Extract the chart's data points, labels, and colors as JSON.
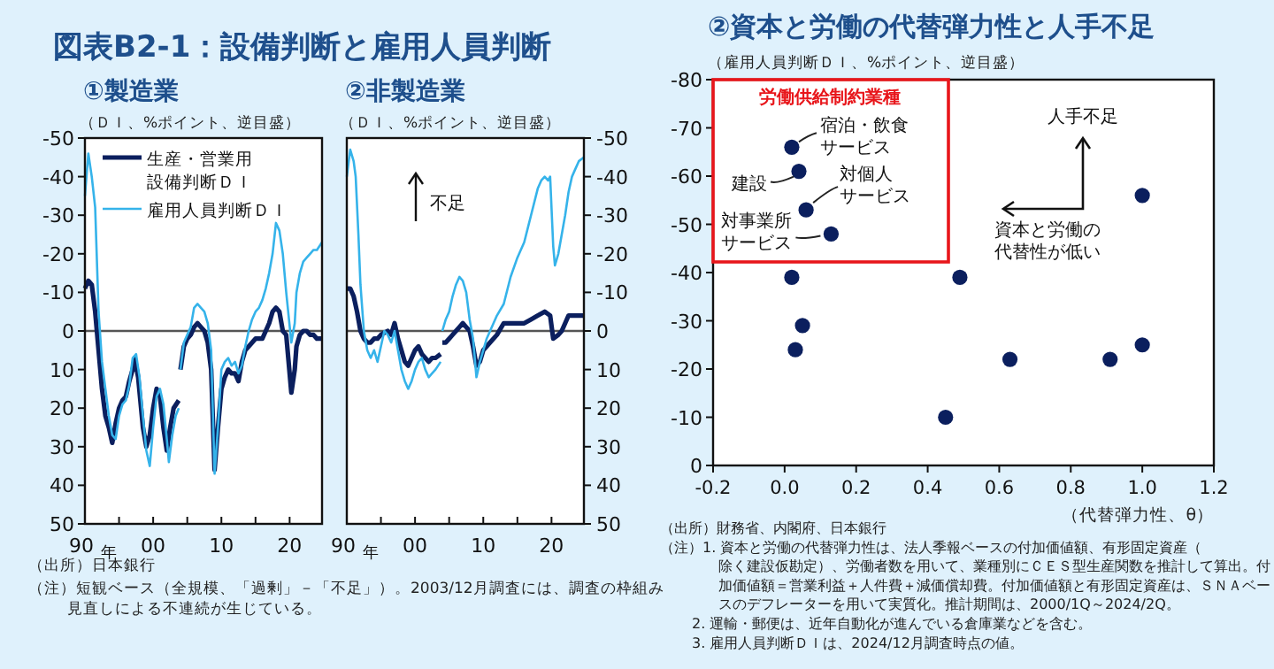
{
  "chart_data": [
    {
      "type": "line",
      "title": "図表B2-1：設備判断と雇用人員判断",
      "subtitle": "①製造業",
      "ylabel": "（ＤＩ、%ポイント、逆目盛）",
      "xlabel": "年",
      "xlim": [
        1990,
        2024.75
      ],
      "ylim": [
        50,
        -50
      ],
      "xticks": [
        {
          "value": 1990,
          "label": "90"
        },
        {
          "value": 1995,
          "label": null
        },
        {
          "value": 2000,
          "label": "00"
        },
        {
          "value": 2005,
          "label": null
        },
        {
          "value": 2010,
          "label": "10"
        },
        {
          "value": 2015,
          "label": null
        },
        {
          "value": 2020,
          "label": "20"
        }
      ],
      "yticks": [
        -50,
        -40,
        -30,
        -20,
        -10,
        0,
        10,
        20,
        30,
        40,
        50
      ],
      "legend": "top left",
      "ref_lines": [
        {
          "axis": "y",
          "value": 0,
          "color": "#555555"
        }
      ],
      "series": [
        {
          "name": "生産・営業用設備判断ＤＩ",
          "color": "#0b1f5e",
          "x": [
            1990,
            1990.5,
            1991,
            1991.5,
            1992,
            1992.5,
            1993,
            1993.5,
            1994,
            1994.5,
            1995,
            1995.5,
            1996,
            1996.5,
            1997,
            1997.3,
            1997.8,
            1998.5,
            1999,
            1999.5,
            2000,
            2000.5,
            2001,
            2001.5,
            2002,
            2002.5,
            2003,
            2003.75,
            2003.9,
            2004,
            2004.5,
            2005,
            2005.5,
            2006,
            2006.5,
            2007,
            2007.5,
            2008,
            2008.5,
            2009,
            2009.5,
            2010,
            2010.5,
            2011,
            2011.5,
            2012,
            2012.5,
            2013,
            2013.5,
            2014,
            2015,
            2016,
            2016.5,
            2017,
            2017.5,
            2018,
            2018.5,
            2019,
            2019.5,
            2020.25,
            2020.75,
            2021,
            2021.5,
            2022,
            2022.5,
            2023,
            2023.5,
            2024,
            2024.75
          ],
          "values": [
            -11,
            -13,
            -12,
            -5,
            5,
            15,
            22,
            25,
            29,
            24,
            20,
            18,
            17,
            13,
            10,
            7,
            12,
            25,
            30,
            27,
            20,
            15,
            17,
            25,
            31,
            25,
            20,
            18,
            null,
            10,
            4,
            2,
            1,
            -1,
            -2,
            -1,
            0,
            3,
            10,
            36,
            25,
            15,
            12,
            10,
            11,
            11,
            13,
            8,
            5,
            4,
            2,
            2,
            0,
            -2,
            -5,
            -6,
            -5,
            0,
            1,
            16,
            10,
            4,
            1,
            0,
            0,
            1,
            1,
            2,
            2
          ]
        },
        {
          "name": "雇用人員判断ＤＩ",
          "color": "#35b3ea",
          "x": [
            1990,
            1990.5,
            1991,
            1991.5,
            1992,
            1992.5,
            1993,
            1993.5,
            1994,
            1994.5,
            1995,
            1995.5,
            1996,
            1996.5,
            1997,
            1997.5,
            1998,
            1998.5,
            1999,
            1999.5,
            2000,
            2000.5,
            2001,
            2001.5,
            2002,
            2002.3,
            2002.8,
            2003.3,
            2003.75,
            2003.9,
            2004,
            2004.5,
            2005,
            2005.5,
            2006,
            2006.5,
            2007,
            2007.5,
            2008,
            2008.5,
            2009,
            2009.5,
            2010,
            2010.5,
            2011,
            2011.5,
            2012,
            2012.5,
            2013,
            2013.5,
            2014,
            2014.5,
            2015,
            2015.5,
            2016,
            2016.5,
            2017,
            2017.5,
            2018,
            2018.5,
            2019,
            2019.5,
            2020.25,
            2020.75,
            2021,
            2021.5,
            2022,
            2022.5,
            2023,
            2023.5,
            2024,
            2024.75
          ],
          "values": [
            -35,
            -46,
            -40,
            -32,
            -5,
            8,
            15,
            22,
            27,
            28,
            22,
            19,
            18,
            14,
            7,
            6,
            12,
            22,
            31,
            35,
            25,
            17,
            15,
            19,
            28,
            34,
            27,
            22,
            20,
            null,
            10,
            3,
            1,
            -1,
            -6,
            -7,
            -6,
            -5,
            -2,
            5,
            37,
            25,
            10,
            8,
            7,
            9,
            8,
            11,
            9,
            4,
            0,
            -3,
            -5,
            -6,
            -8,
            -11,
            -15,
            -20,
            -28,
            -26,
            -20,
            -10,
            3,
            -2,
            -10,
            -15,
            -18,
            -19,
            -20,
            -21,
            -21,
            -23
          ]
        }
      ],
      "annotations": [
        "（出所）日本銀行",
        "（注）短観ベース（全規模、「過剰」－「不足」）。2003/12月調査には、調査の枠組み見直しによる不連続が生じている。"
      ]
    },
    {
      "type": "line",
      "subtitle": "②非製造業",
      "ylabel": "（ＤＩ、%ポイント、逆目盛）",
      "xlabel": "年",
      "xlim": [
        1990,
        2024.75
      ],
      "ylim": [
        50,
        -50
      ],
      "xticks": [
        {
          "value": 1990,
          "label": "90"
        },
        {
          "value": 1995,
          "label": null
        },
        {
          "value": 2000,
          "label": "00"
        },
        {
          "value": 2005,
          "label": null
        },
        {
          "value": 2010,
          "label": "10"
        },
        {
          "value": 2015,
          "label": null
        },
        {
          "value": 2020,
          "label": "20"
        }
      ],
      "yticks": [
        -50,
        -40,
        -30,
        -20,
        -10,
        0,
        10,
        20,
        30,
        40,
        50
      ],
      "ref_lines": [
        {
          "axis": "y",
          "value": 0,
          "color": "#555555"
        }
      ],
      "series": [
        {
          "color": "#0b1f5e",
          "x": [
            1990,
            1990.5,
            1991,
            1991.5,
            1992,
            1992.5,
            1993,
            1993.5,
            1994,
            1994.5,
            1995,
            1996,
            1996.5,
            1997,
            1997.5,
            1998,
            1998.5,
            1999,
            1999.5,
            2000,
            2000.5,
            2001,
            2001.5,
            2002,
            2002.5,
            2003,
            2003.75,
            2003.9,
            2004,
            2004.5,
            2005,
            2005.5,
            2006,
            2006.5,
            2007,
            2007.5,
            2008,
            2008.5,
            2009,
            2009.5,
            2010,
            2011,
            2012,
            2013,
            2014,
            2015,
            2016,
            2017,
            2018,
            2019,
            2019.8,
            2020.25,
            2021,
            2021.5,
            2022,
            2022.5,
            2023,
            2024,
            2024.75
          ],
          "values": [
            -11,
            -11,
            -9,
            -5,
            0,
            2,
            3,
            3,
            2,
            2,
            1,
            0,
            1,
            -2,
            2,
            5,
            8,
            9,
            7,
            5,
            4,
            6,
            7,
            8,
            7,
            7,
            6,
            null,
            3,
            3,
            2,
            1,
            0,
            -1,
            -2,
            -1,
            0,
            4,
            9,
            8,
            5,
            3,
            1,
            -2,
            -2,
            -2,
            -2,
            -3,
            -4,
            -5,
            -4,
            2,
            1,
            0,
            -2,
            -4,
            -4,
            -4,
            -4
          ]
        },
        {
          "color": "#35b3ea",
          "x": [
            1990,
            1990.5,
            1991,
            1991.3,
            1991.7,
            1992,
            1992.5,
            1993,
            1993.5,
            1994,
            1994.5,
            1995,
            1995.5,
            1996,
            1996.5,
            1997,
            1997.5,
            1998,
            1998.5,
            1999,
            1999.5,
            2000,
            2000.5,
            2001,
            2001.5,
            2002,
            2002.5,
            2003,
            2003.75,
            2003.9,
            2004,
            2004.5,
            2005,
            2005.5,
            2006,
            2006.5,
            2007,
            2007.5,
            2008,
            2008.5,
            2009,
            2009.5,
            2010,
            2010.5,
            2011,
            2011.5,
            2012,
            2013,
            2014,
            2015,
            2016,
            2017,
            2018,
            2018.5,
            2019,
            2019.5,
            2019.8,
            2020.25,
            2020.5,
            2021,
            2021.5,
            2022,
            2022.5,
            2023,
            2023.5,
            2024,
            2024.75
          ],
          "values": [
            -40,
            -47,
            -44,
            -40,
            -25,
            -12,
            0,
            5,
            7,
            5,
            8,
            4,
            0,
            1,
            3,
            0,
            5,
            10,
            13,
            15,
            13,
            10,
            8,
            7,
            10,
            12,
            11,
            10,
            8,
            null,
            0,
            -3,
            -5,
            -9,
            -12,
            -14,
            -13,
            -10,
            -3,
            2,
            12,
            8,
            5,
            2,
            0,
            -2,
            -4,
            -7,
            -14,
            -19,
            -23,
            -30,
            -37,
            -39,
            -40,
            -39,
            -40,
            -22,
            -17,
            -20,
            -25,
            -30,
            -36,
            -40,
            -42,
            -44,
            -45
          ]
        }
      ],
      "annotations": [
        "不足"
      ]
    },
    {
      "type": "scatter",
      "title": "②資本と労働の代替弾力性と人手不足",
      "ylabel": "（雇用人員判断ＤＩ、%ポイント、逆目盛）",
      "xlabel": "（代替弾力性、θ）",
      "xlim": [
        -0.2,
        1.2
      ],
      "ylim": [
        0,
        -80
      ],
      "xticks": [
        {
          "value": -0.2,
          "label": "-0.2"
        },
        {
          "value": 0,
          "label": "0.0"
        },
        {
          "value": 0.2,
          "label": "0.2"
        },
        {
          "value": 0.4,
          "label": "0.4"
        },
        {
          "value": 0.6,
          "label": "0.6"
        },
        {
          "value": 0.8,
          "label": "0.8"
        },
        {
          "value": 1,
          "label": "1.0"
        },
        {
          "value": 1.2,
          "label": "1.2"
        }
      ],
      "yticks": [
        0,
        -10,
        -20,
        -30,
        -40,
        -50,
        -60,
        -70,
        -80
      ],
      "marker": "circle",
      "series": [
        {
          "color": "#0b1f5e",
          "x": [
            0.02,
            0.04,
            0.06,
            0.13,
            1.0,
            0.02,
            0.05,
            0.03,
            0.49,
            0.45,
            0.63,
            0.91,
            1.0
          ],
          "values": [
            -66,
            -61,
            -53,
            -48,
            -56,
            -39,
            -29,
            -24,
            -39,
            -10,
            -22,
            -22,
            -25
          ],
          "value_labels": [
            "宿泊・飲食サービス",
            "建設",
            "対個人サービス",
            "対事業所サービス",
            null,
            null,
            null,
            null,
            null,
            null,
            null,
            null,
            null
          ]
        }
      ],
      "annotations": [
        "労働供給制約業種",
        "人手不足",
        "資本と労働の代替性が低い",
        "（出所）財務省、内閣府、日本銀行",
        "（注）1. 資本と労働の代替弾力性は、法人季報ベースの付加価値額、有形固定資産（除く建設仮勘定）、労働者数を用いて、業種別にＣＥＳ型生産関数を推計して算出。付加価値額＝営業利益＋人件費＋減価償却費。付加価値額と有形固定資産は、ＳＮＡベースのデフレーターを用いて実質化。推計期間は、2000/1Q～2024/2Q。",
        "2. 運輸・郵便は、近年自動化が進んでいる倉庫業などを含む。",
        "3. 雇用人員判断ＤＩは、2024/12月調査時点の値。"
      ]
    }
  ]
}
